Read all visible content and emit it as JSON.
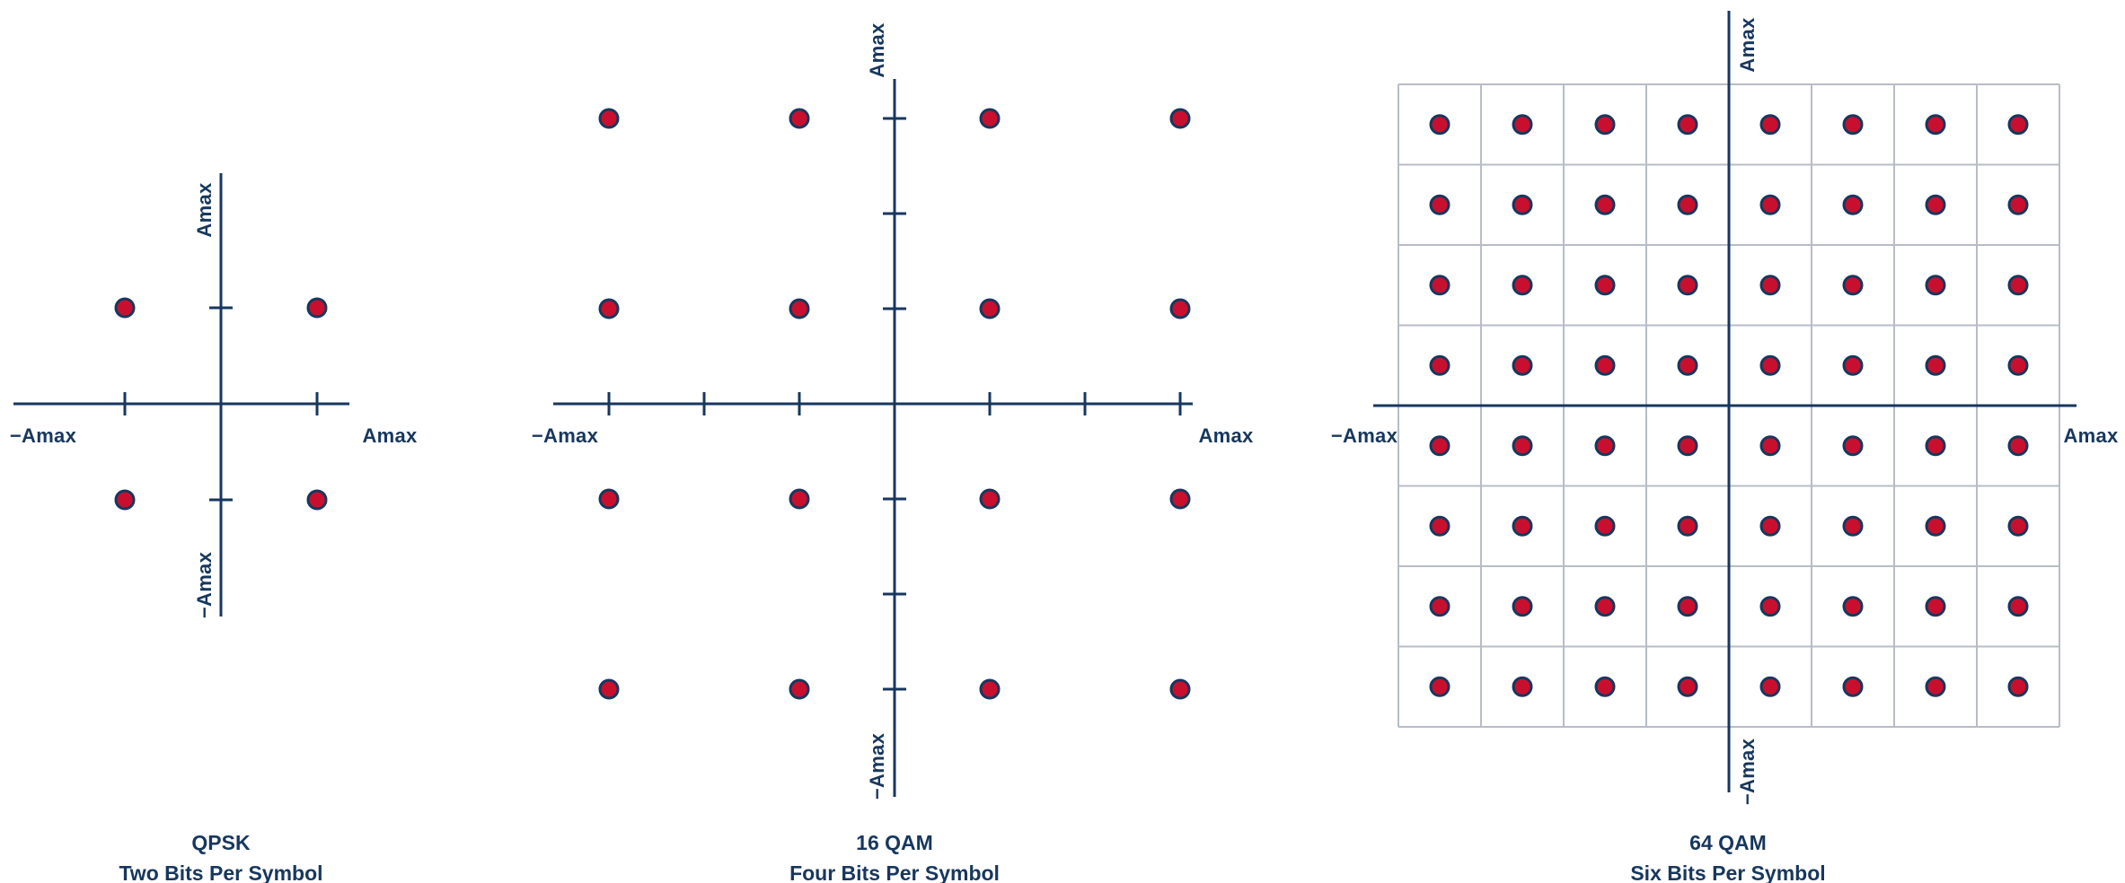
{
  "figure": {
    "background": "#ffffff",
    "axis_color": "#17375e",
    "text_color": "#17375e",
    "grid_color": "#b7bcc7",
    "point_fill": "#c8102e",
    "point_stroke": "#17375e"
  },
  "panels": [
    {
      "id": "qpsk",
      "caption_title": "QPSK",
      "caption_subtitle": "Two Bits Per Symbol",
      "bits_per_symbol": 2,
      "points_per_side": 2,
      "total_points": 4,
      "show_cell_grid": false,
      "axis_labels": {
        "top": "Amax",
        "bottom": "−Amax",
        "left": "−Amax",
        "right": "Amax"
      }
    },
    {
      "id": "16qam",
      "caption_title": "16 QAM",
      "caption_subtitle": "Four Bits Per Symbol",
      "bits_per_symbol": 4,
      "points_per_side": 4,
      "total_points": 16,
      "show_cell_grid": false,
      "axis_labels": {
        "top": "Amax",
        "bottom": "−Amax",
        "left": "−Amax",
        "right": "Amax"
      }
    },
    {
      "id": "64qam",
      "caption_title": "64 QAM",
      "caption_subtitle": "Six Bits Per Symbol",
      "bits_per_symbol": 6,
      "points_per_side": 8,
      "total_points": 64,
      "show_cell_grid": true,
      "axis_labels": {
        "top": "Amax",
        "bottom": "−Amax",
        "left": "−Amax",
        "right": "Amax"
      }
    }
  ]
}
